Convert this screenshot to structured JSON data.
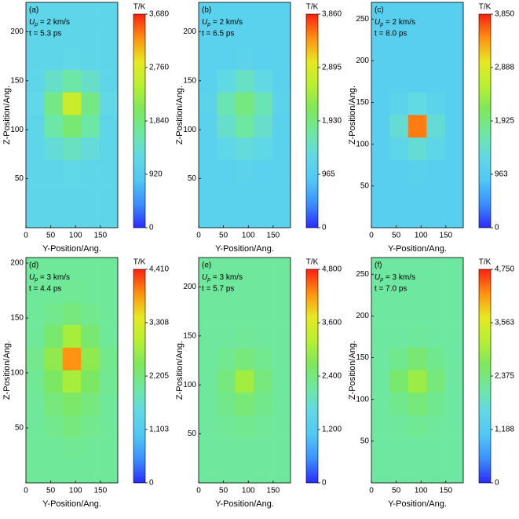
{
  "colormap": [
    "#2a2bff",
    "#3a8fff",
    "#4fc8f5",
    "#62d8e6",
    "#6ee8a0",
    "#7ee85a",
    "#b8f030",
    "#e8e820",
    "#ff9010",
    "#ff2010"
  ],
  "chart_data": [
    {
      "type": "heatmap",
      "panel_label": "(a)",
      "speed": {
        "symbol": "U",
        "subscript": "p",
        "text": " = 2 km/s"
      },
      "time": "t = 5.3 ps",
      "xlabel": "Y-Position/Ang.",
      "ylabel": "Z-Position/Ang.",
      "xlim": [
        0,
        185
      ],
      "xticks": [
        0,
        50,
        100,
        150
      ],
      "ylim": [
        0,
        230
      ],
      "yticks": [
        50,
        100,
        150,
        200
      ],
      "colorbar_label": "T/K",
      "clim": [
        0,
        3680
      ],
      "cticks": [
        0,
        920,
        {
          "value": 1840,
          "label": "1,840"
        },
        {
          "value": 2760,
          "label": "2,760"
        },
        {
          "value": 3680,
          "label": "3,680"
        }
      ],
      "z": [
        [
          1150,
          1150,
          1150,
          1150,
          1150
        ],
        [
          1150,
          1150,
          1150,
          1150,
          1150
        ],
        [
          1150,
          1150,
          1200,
          1150,
          1150
        ],
        [
          1150,
          1400,
          1600,
          1400,
          1150
        ],
        [
          1200,
          1800,
          2600,
          1800,
          1200
        ],
        [
          1150,
          1600,
          1900,
          1600,
          1150
        ],
        [
          1150,
          1300,
          1450,
          1300,
          1150
        ],
        [
          1150,
          1150,
          1200,
          1150,
          1150
        ],
        [
          1150,
          1150,
          1150,
          1150,
          1150
        ],
        [
          1150,
          1150,
          1150,
          1150,
          1150
        ]
      ]
    },
    {
      "type": "heatmap",
      "panel_label": "(b)",
      "speed": {
        "symbol": "U",
        "subscript": "p",
        "text": " = 2 km/s"
      },
      "time": "t = 6.5 ps",
      "xlabel": "Y-Position/Ang.",
      "ylabel": "Z-Position/Ang.",
      "xlim": [
        0,
        185
      ],
      "xticks": [
        0,
        50,
        100,
        150
      ],
      "ylim": [
        0,
        230
      ],
      "yticks": [
        50,
        100,
        150,
        200
      ],
      "colorbar_label": "T/K",
      "clim": [
        0,
        3860
      ],
      "cticks": [
        0,
        965,
        {
          "value": 1930,
          "label": "1,930"
        },
        {
          "value": 2895,
          "label": "2,895"
        },
        {
          "value": 3860,
          "label": "3,860"
        }
      ],
      "z": [
        [
          1100,
          1100,
          1100,
          1100,
          1100
        ],
        [
          1100,
          1100,
          1100,
          1100,
          1100
        ],
        [
          1100,
          1100,
          1150,
          1100,
          1100
        ],
        [
          1100,
          1300,
          1500,
          1300,
          1100
        ],
        [
          1150,
          1600,
          1900,
          1600,
          1150
        ],
        [
          1100,
          1450,
          1700,
          1450,
          1100
        ],
        [
          1100,
          1250,
          1350,
          1250,
          1100
        ],
        [
          1100,
          1100,
          1150,
          1100,
          1100
        ],
        [
          1100,
          1100,
          1100,
          1100,
          1100
        ],
        [
          1100,
          1100,
          1100,
          1100,
          1100
        ]
      ]
    },
    {
      "type": "heatmap",
      "panel_label": "(c)",
      "speed": {
        "symbol": "U",
        "subscript": "p",
        "text": " = 2 km/s"
      },
      "time": "t = 8.0 ps",
      "xlabel": "Y-Position/Ang.",
      "ylabel": "Z-Position/Ang.",
      "xlim": [
        0,
        185
      ],
      "xticks": [
        0,
        50,
        100,
        150
      ],
      "ylim": [
        0,
        270
      ],
      "yticks": [
        50,
        100,
        150,
        200,
        250
      ],
      "colorbar_label": "T/K",
      "clim": [
        0,
        3850
      ],
      "cticks": [
        0,
        963,
        {
          "value": 1925,
          "label": "1,925"
        },
        {
          "value": 2888,
          "label": "2,888"
        },
        {
          "value": 3850,
          "label": "3,850"
        }
      ],
      "z": [
        [
          1050,
          1050,
          1050,
          1050,
          1050
        ],
        [
          1050,
          1050,
          1050,
          1050,
          1050
        ],
        [
          1050,
          1050,
          1050,
          1050,
          1050
        ],
        [
          1050,
          1050,
          1050,
          1050,
          1050
        ],
        [
          1050,
          1150,
          1300,
          1150,
          1050
        ],
        [
          1050,
          1400,
          3500,
          1400,
          1050
        ],
        [
          1050,
          1200,
          1400,
          1200,
          1050
        ],
        [
          1050,
          1050,
          1100,
          1050,
          1050
        ],
        [
          1050,
          1050,
          1050,
          1050,
          1050
        ],
        [
          1050,
          1050,
          1050,
          1050,
          1050
        ]
      ]
    },
    {
      "type": "heatmap",
      "panel_label": "(d)",
      "speed": {
        "symbol": "U",
        "subscript": "p",
        "text": " = 3 km/s"
      },
      "time": "t = 4.4 ps",
      "xlabel": "Y-Position/Ang.",
      "ylabel": "Z-Position/Ang.",
      "xlim": [
        0,
        185
      ],
      "xticks": [
        0,
        50,
        100,
        150
      ],
      "ylim": [
        0,
        205
      ],
      "yticks": [
        50,
        100,
        150,
        200
      ],
      "colorbar_label": "T/K",
      "clim": [
        0,
        4410
      ],
      "cticks": [
        0,
        {
          "value": 1103,
          "label": "1,103"
        },
        {
          "value": 2205,
          "label": "2,205"
        },
        {
          "value": 3308,
          "label": "3,308"
        },
        {
          "value": 4410,
          "label": "4,410"
        }
      ],
      "z": [
        [
          2000,
          2000,
          2000,
          2000,
          2000
        ],
        [
          2000,
          2000,
          2050,
          2000,
          2000
        ],
        [
          2000,
          2100,
          2200,
          2100,
          2000
        ],
        [
          2000,
          2300,
          2800,
          2300,
          2000
        ],
        [
          2100,
          2600,
          3900,
          2600,
          2100
        ],
        [
          2050,
          2400,
          2800,
          2400,
          2050
        ],
        [
          2000,
          2200,
          2350,
          2200,
          2000
        ],
        [
          2000,
          2100,
          2200,
          2100,
          2000
        ],
        [
          2000,
          2000,
          2050,
          2000,
          2000
        ],
        [
          2000,
          2000,
          2000,
          2000,
          2000
        ]
      ]
    },
    {
      "type": "heatmap",
      "panel_label": "(e)",
      "speed": {
        "symbol": "U",
        "subscript": "p",
        "text": " = 3 km/s"
      },
      "time": "t = 5.7 ps",
      "xlabel": "Y-Position/Ang.",
      "ylabel": "Z-Position/Ang.",
      "xlim": [
        0,
        185
      ],
      "xticks": [
        0,
        50,
        100,
        150
      ],
      "ylim": [
        0,
        230
      ],
      "yticks": [
        50,
        100,
        150,
        200
      ],
      "colorbar_label": "T/K",
      "clim": [
        0,
        4800
      ],
      "cticks": [
        0,
        {
          "value": 1200,
          "label": "1,200"
        },
        {
          "value": 2400,
          "label": "2,400"
        },
        {
          "value": 3600,
          "label": "3,600"
        },
        {
          "value": 4800,
          "label": "4,800"
        }
      ],
      "z": [
        [
          2150,
          2150,
          2150,
          2150,
          2150
        ],
        [
          2150,
          2150,
          2150,
          2150,
          2150
        ],
        [
          2150,
          2150,
          2150,
          2150,
          2150
        ],
        [
          2150,
          2150,
          2200,
          2150,
          2150
        ],
        [
          2150,
          2250,
          2400,
          2250,
          2150
        ],
        [
          2150,
          2400,
          3000,
          2400,
          2150
        ],
        [
          2150,
          2300,
          2450,
          2300,
          2150
        ],
        [
          2150,
          2200,
          2250,
          2200,
          2150
        ],
        [
          2150,
          2150,
          2150,
          2150,
          2150
        ],
        [
          2150,
          2150,
          2150,
          2150,
          2150
        ]
      ]
    },
    {
      "type": "heatmap",
      "panel_label": "(f)",
      "speed": {
        "symbol": "U",
        "subscript": "p",
        "text": " = 3 km/s"
      },
      "time": "t = 7.0 ps",
      "xlabel": "Y-Position/Ang.",
      "ylabel": "Z-Position/Ang.",
      "xlim": [
        0,
        185
      ],
      "xticks": [
        0,
        50,
        100,
        150
      ],
      "ylim": [
        0,
        270
      ],
      "yticks": [
        50,
        100,
        150,
        200,
        250
      ],
      "colorbar_label": "T/K",
      "clim": [
        0,
        4750
      ],
      "cticks": [
        0,
        {
          "value": 1188,
          "label": "1,188"
        },
        {
          "value": 2375,
          "label": "2,375"
        },
        {
          "value": 3563,
          "label": "3,563"
        },
        {
          "value": 4750,
          "label": "4,750"
        }
      ],
      "z": [
        [
          2100,
          2100,
          2100,
          2100,
          2100
        ],
        [
          2100,
          2100,
          2100,
          2100,
          2100
        ],
        [
          2100,
          2100,
          2100,
          2100,
          2100
        ],
        [
          2100,
          2100,
          2150,
          2100,
          2100
        ],
        [
          2100,
          2250,
          2450,
          2250,
          2100
        ],
        [
          2100,
          2500,
          2900,
          2400,
          2100
        ],
        [
          2100,
          2250,
          2400,
          2250,
          2100
        ],
        [
          2100,
          2150,
          2200,
          2150,
          2100
        ],
        [
          2100,
          2100,
          2100,
          2100,
          2100
        ],
        [
          2100,
          2100,
          2100,
          2100,
          2100
        ]
      ]
    }
  ]
}
